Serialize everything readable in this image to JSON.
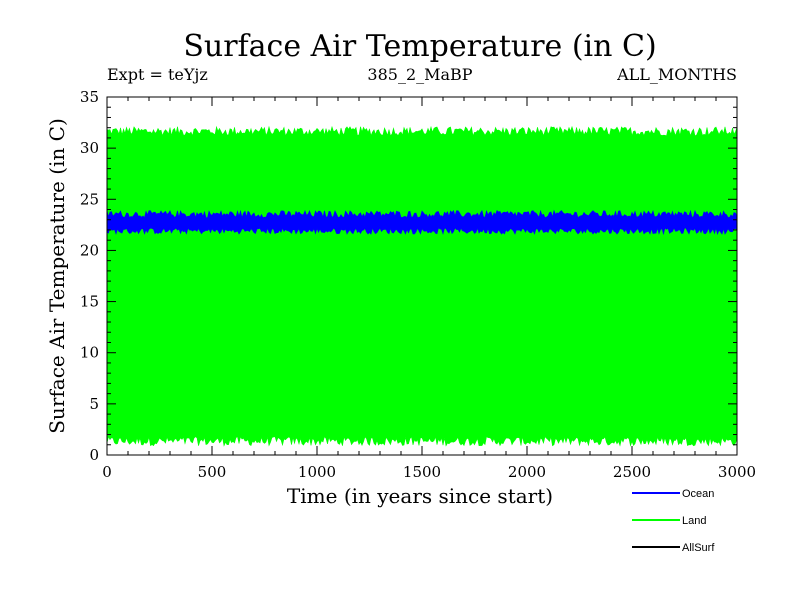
{
  "chart_data": {
    "type": "line",
    "title": "Surface Air Temperature (in C)",
    "subtitle_left": "Expt = teYjz",
    "subtitle_center": "385_2_MaBP",
    "subtitle_right": "ALL_MONTHS",
    "xlabel": "Time (in years since start)",
    "ylabel": "Surface Air Temperature (in C)",
    "xlim": [
      0,
      3000
    ],
    "ylim": [
      0,
      35
    ],
    "xticks": [
      0,
      500,
      1000,
      1500,
      2000,
      2500,
      3000
    ],
    "yticks": [
      0,
      5,
      10,
      15,
      20,
      25,
      30,
      35
    ],
    "grid": false,
    "legend_position": "bottom-right",
    "series": [
      {
        "name": "Land",
        "color": "#00ff00",
        "min_band": [
          0.9,
          1.8
        ],
        "max_band": [
          31.2,
          32.1
        ]
      },
      {
        "name": "Ocean",
        "color": "#0000ff",
        "min_band": [
          21.6,
          22.2
        ],
        "max_band": [
          23.2,
          23.9
        ]
      },
      {
        "name": "AllSurf",
        "color": "#000000",
        "min_band": [],
        "max_band": []
      }
    ],
    "legend": [
      "Ocean",
      "Land",
      "AllSurf"
    ]
  }
}
